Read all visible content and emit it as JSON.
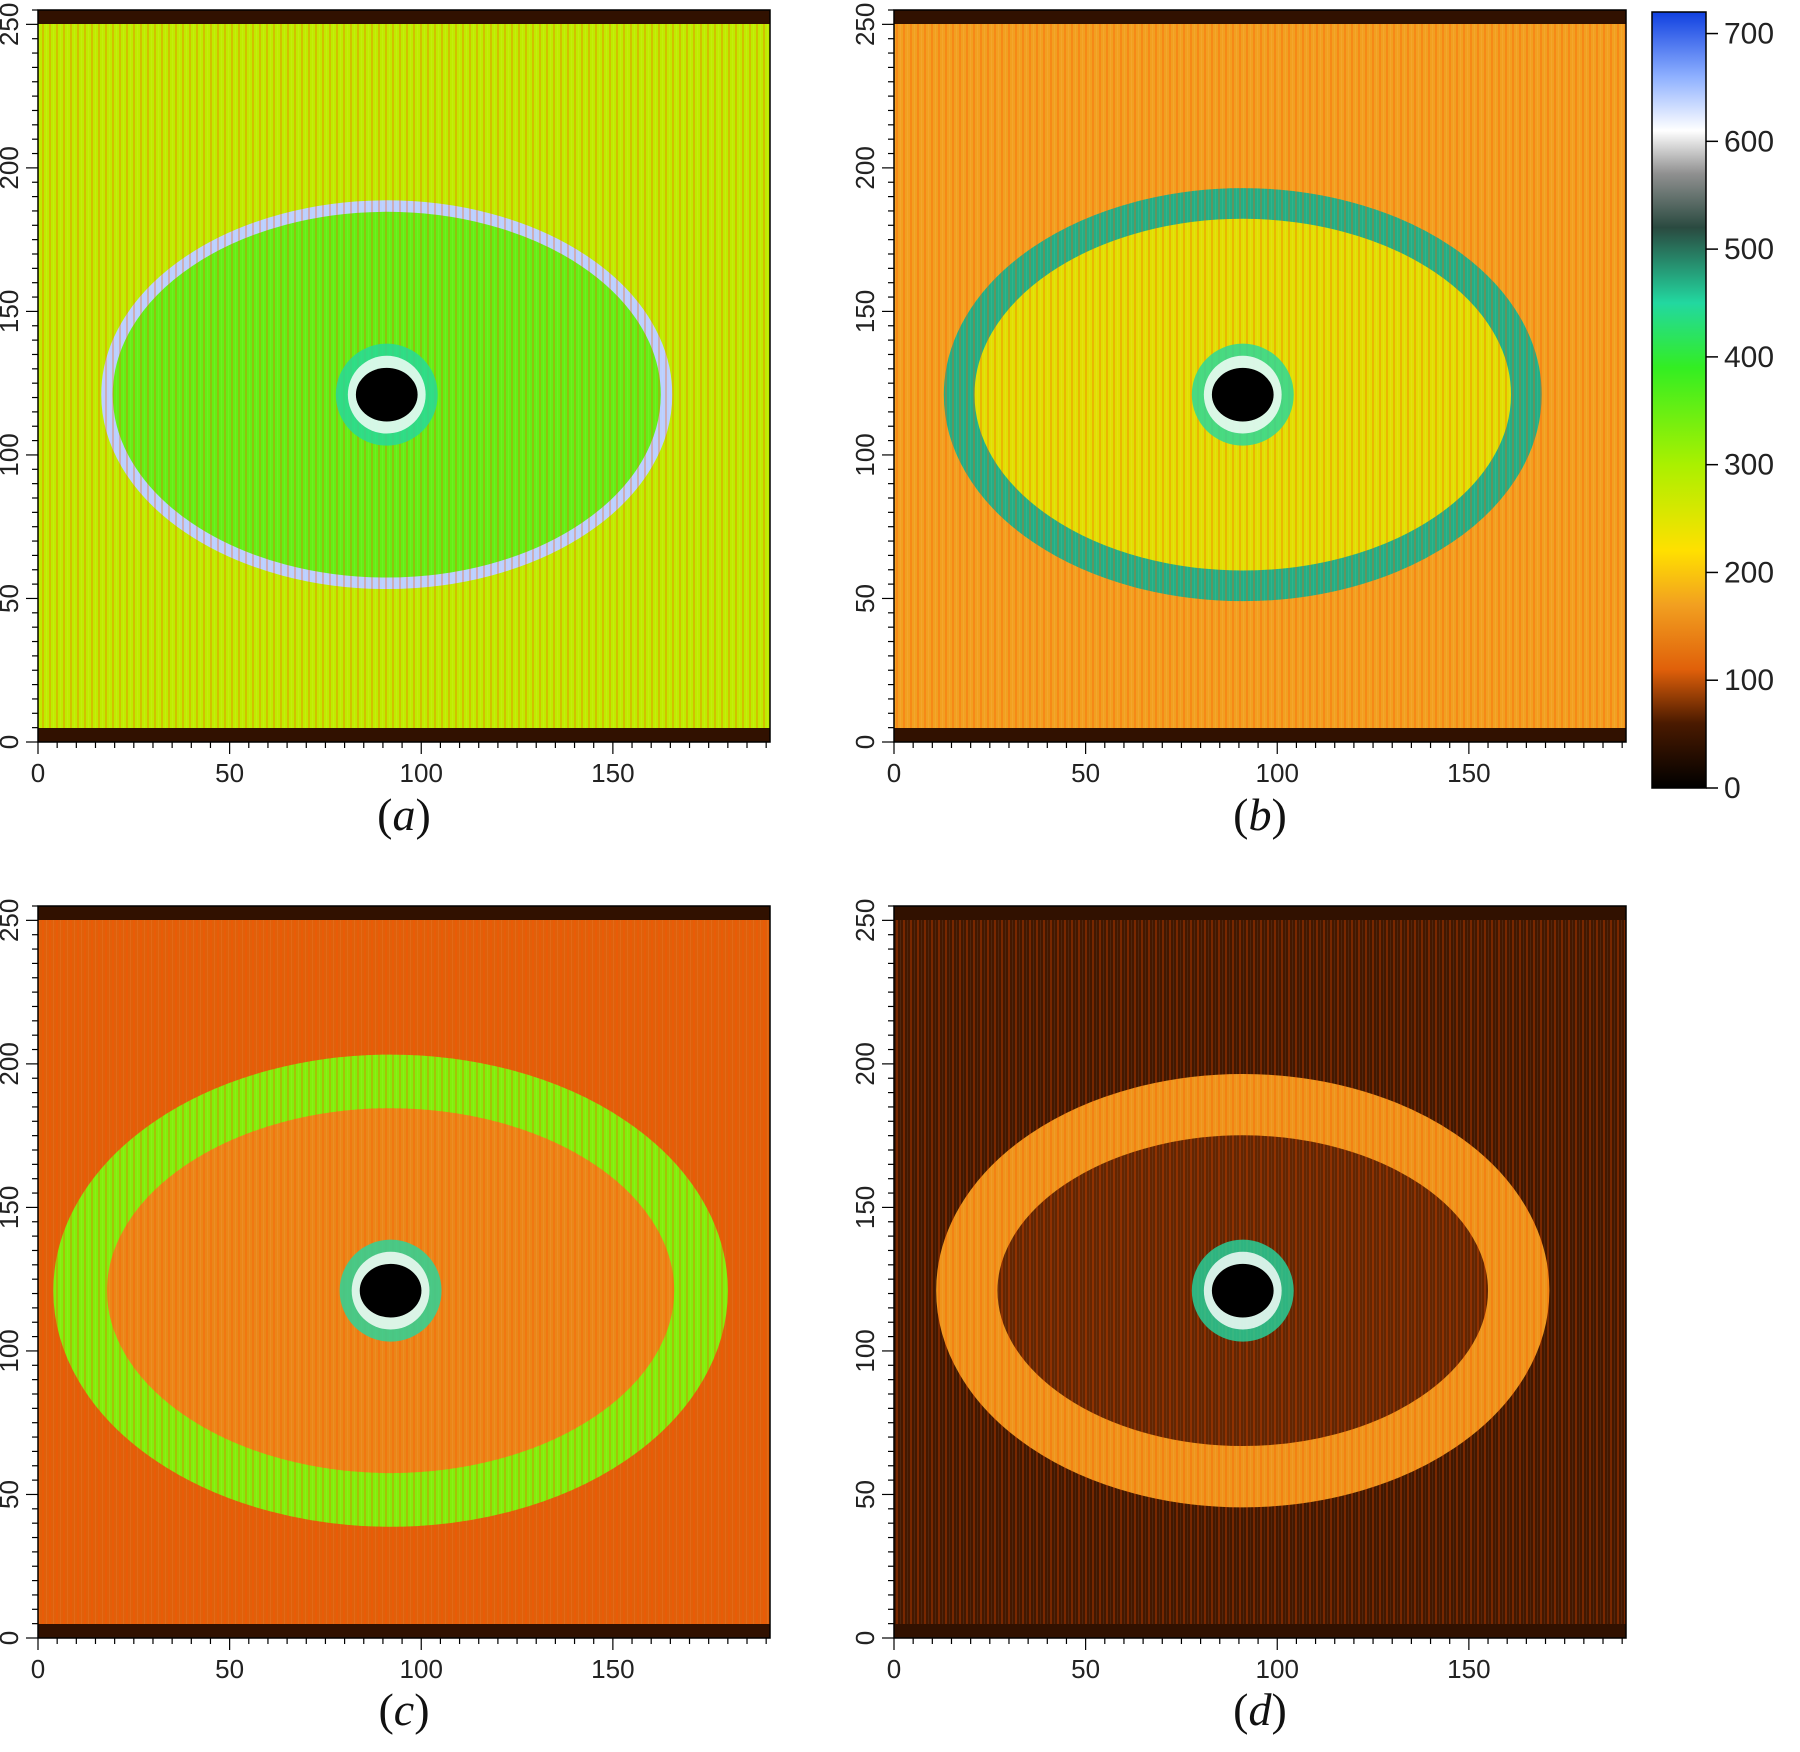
{
  "chart_data": {
    "type": "heatmap",
    "colorbar": {
      "ticks": [
        0,
        100,
        200,
        300,
        400,
        500,
        600,
        700
      ],
      "range": [
        0,
        720
      ],
      "colors": [
        {
          "v": 0,
          "c": "#000000"
        },
        {
          "v": 60,
          "c": "#4a1a00"
        },
        {
          "v": 110,
          "c": "#e0600a"
        },
        {
          "v": 170,
          "c": "#f2a020"
        },
        {
          "v": 220,
          "c": "#ffe000"
        },
        {
          "v": 300,
          "c": "#aaf000"
        },
        {
          "v": 390,
          "c": "#33ee22"
        },
        {
          "v": 450,
          "c": "#22d8a0"
        },
        {
          "v": 520,
          "c": "#2a4a40"
        },
        {
          "v": 570,
          "c": "#909090"
        },
        {
          "v": 610,
          "c": "#ffffff"
        },
        {
          "v": 660,
          "c": "#8eb0ff"
        },
        {
          "v": 720,
          "c": "#1040e0"
        }
      ]
    },
    "panels": [
      {
        "caption": "a",
        "xticks": [
          0,
          50,
          100,
          150
        ],
        "yticks": [
          0,
          50,
          100,
          150,
          200,
          250
        ],
        "xlim": [
          0,
          191
        ],
        "ylim": [
          0,
          255
        ],
        "center": [
          91,
          121
        ],
        "ring_radius": 73,
        "ring_width": 1.5,
        "background_value": 280,
        "ring_value": 640,
        "interior_value": 360,
        "beamstop_radius": 7
      },
      {
        "caption": "b",
        "xticks": [
          0,
          50,
          100,
          150
        ],
        "yticks": [
          0,
          50,
          100,
          150,
          200,
          250
        ],
        "xlim": [
          0,
          191
        ],
        "ylim": [
          0,
          255
        ],
        "center": [
          91,
          121
        ],
        "ring_radius": 74,
        "ring_width": 4,
        "background_value": 170,
        "ring_value": 470,
        "interior_value": 250,
        "beamstop_radius": 7
      },
      {
        "caption": "c",
        "xticks": [
          0,
          50,
          100,
          150
        ],
        "yticks": [
          0,
          50,
          100,
          150,
          200,
          250
        ],
        "xlim": [
          0,
          191
        ],
        "ylim": [
          0,
          255
        ],
        "center": [
          92,
          121
        ],
        "ring_radius": 81,
        "ring_width": 7,
        "background_value": 110,
        "ring_value": 330,
        "interior_value": 150,
        "beamstop_radius": 7
      },
      {
        "caption": "d",
        "xticks": [
          0,
          50,
          100,
          150
        ],
        "yticks": [
          0,
          50,
          100,
          150,
          200,
          250
        ],
        "xlim": [
          0,
          191
        ],
        "ylim": [
          0,
          255
        ],
        "center": [
          91,
          121
        ],
        "ring_radius": 72,
        "ring_width": 8,
        "background_value": 55,
        "ring_value": 160,
        "interior_value": 70,
        "beamstop_radius": 7
      }
    ]
  }
}
